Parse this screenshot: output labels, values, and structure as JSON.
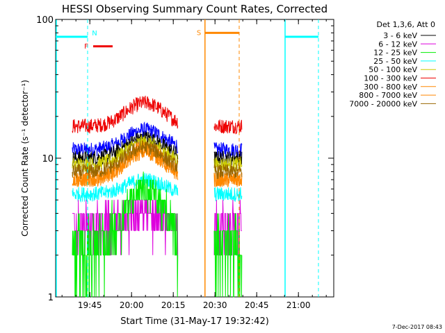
{
  "chart_data": {
    "type": "line",
    "title": "HESSI Observing Summary Count Rates, Corrected",
    "xlabel": "Start Time (31-May-17 19:32:42)",
    "ylabel": "Corrected Count Rate (s⁻¹ detector⁻¹)",
    "yscale": "log",
    "xlim_min": [
      0,
      100
    ],
    "ylim": [
      1,
      100
    ],
    "x_ticks": [
      {
        "t": 12.3,
        "label": "19:45"
      },
      {
        "t": 27.3,
        "label": "20:00"
      },
      {
        "t": 42.3,
        "label": "20:15"
      },
      {
        "t": 57.3,
        "label": "20:30"
      },
      {
        "t": 72.3,
        "label": "20:45"
      },
      {
        "t": 87.3,
        "label": "21:00"
      }
    ],
    "y_ticks": [
      {
        "value": 1,
        "label": "1"
      },
      {
        "value": 10,
        "label": "10"
      },
      {
        "value": 100,
        "label": "100"
      }
    ],
    "legend_title": "Det 1,3,6, Att 0",
    "legend_position": "outside-right",
    "series": [
      {
        "name": "3 - 6 keV",
        "color": "#000000",
        "baseline": 10,
        "peak": 14
      },
      {
        "name": "6 - 12 keV",
        "color": "#dd00dd",
        "baseline": 3.2,
        "peak": 4
      },
      {
        "name": "12 - 25 keV",
        "color": "#00ee00",
        "baseline": 2.3,
        "peak": 6
      },
      {
        "name": "25 - 50 keV",
        "color": "#00ffff",
        "baseline": 5.5,
        "peak": 7
      },
      {
        "name": "50 - 100 keV",
        "color": "#cccc00",
        "baseline": 9,
        "peak": 13
      },
      {
        "name": "100 - 300 keV",
        "color": "#ee0000",
        "baseline": 17,
        "peak": 25
      },
      {
        "name": "300 - 800 keV",
        "color": "#ff8800",
        "baseline": 7,
        "peak": 12
      },
      {
        "name": "800 - 7000 keV",
        "color": "#ff8800",
        "baseline": 7,
        "peak": 11
      },
      {
        "name": "7000 - 20000 keV",
        "color": "#996600",
        "baseline": 8,
        "peak": 12
      }
    ],
    "blue_series": {
      "color": "#0000ff",
      "baseline": 11.5,
      "peak": 16
    },
    "data_segments": [
      {
        "start": 6.0,
        "end": 44.0
      },
      {
        "start": 57.0,
        "end": 67.0
      }
    ],
    "flags": [
      {
        "label": "N",
        "color": "#00ffff",
        "value": 75
      },
      {
        "label": "F",
        "color": "#ee0000",
        "value": 64
      },
      {
        "label": "S",
        "color": "#ff8800",
        "value": 80
      }
    ],
    "timestamp": "7-Dec-2017 08:43"
  }
}
